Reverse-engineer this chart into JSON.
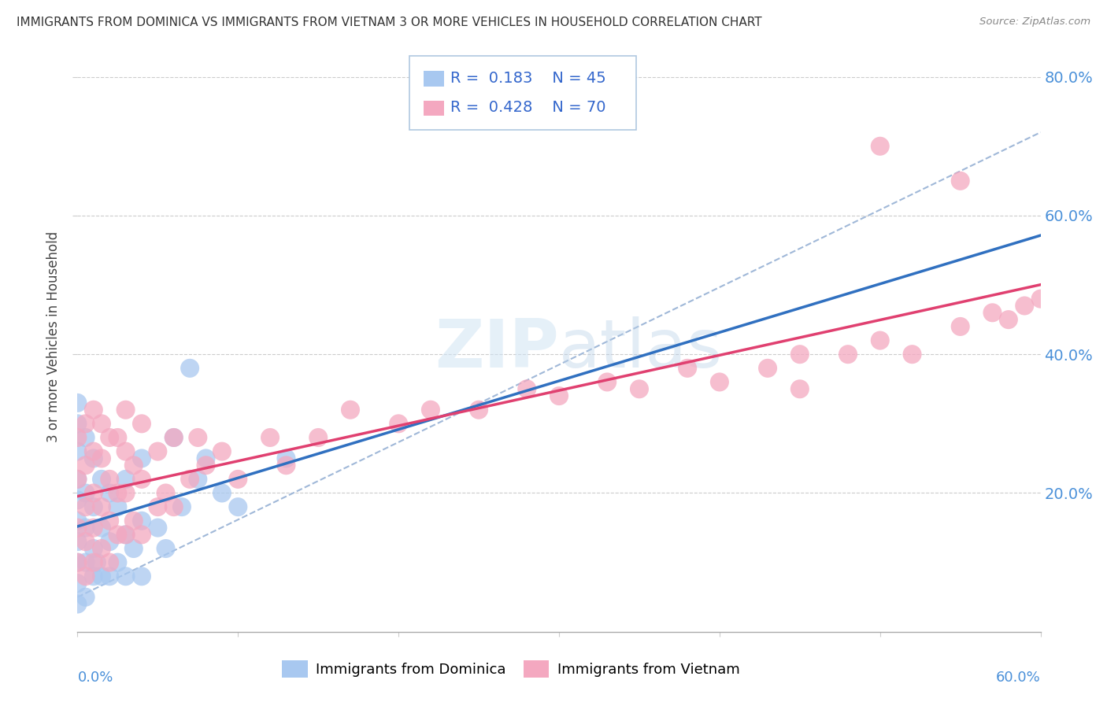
{
  "title": "IMMIGRANTS FROM DOMINICA VS IMMIGRANTS FROM VIETNAM 3 OR MORE VEHICLES IN HOUSEHOLD CORRELATION CHART",
  "source": "Source: ZipAtlas.com",
  "ylabel": "3 or more Vehicles in Household",
  "xlim": [
    0.0,
    0.6
  ],
  "ylim": [
    0.0,
    0.85
  ],
  "dominica_R": 0.183,
  "dominica_N": 45,
  "vietnam_R": 0.428,
  "vietnam_N": 70,
  "dominica_color": "#a8c8f0",
  "vietnam_color": "#f4a8c0",
  "dominica_line_color": "#3070c0",
  "vietnam_line_color": "#e04070",
  "dash_line_color": "#a0b8d8",
  "legend_border_color": "#b0c8e0",
  "ytick_vals": [
    0.2,
    0.4,
    0.6,
    0.8
  ],
  "ytick_labels": [
    "20.0%",
    "40.0%",
    "60.0%",
    "80.0%"
  ],
  "dominica_x": [
    0.0,
    0.0,
    0.0,
    0.0,
    0.0,
    0.0,
    0.0,
    0.0,
    0.0,
    0.0,
    0.005,
    0.005,
    0.005,
    0.005,
    0.005,
    0.01,
    0.01,
    0.01,
    0.01,
    0.012,
    0.015,
    0.015,
    0.015,
    0.02,
    0.02,
    0.02,
    0.025,
    0.025,
    0.03,
    0.03,
    0.03,
    0.035,
    0.04,
    0.04,
    0.04,
    0.05,
    0.055,
    0.06,
    0.065,
    0.07,
    0.075,
    0.08,
    0.09,
    0.1,
    0.13
  ],
  "dominica_y": [
    0.04,
    0.07,
    0.1,
    0.13,
    0.16,
    0.19,
    0.22,
    0.26,
    0.3,
    0.33,
    0.05,
    0.1,
    0.15,
    0.2,
    0.28,
    0.08,
    0.12,
    0.18,
    0.25,
    0.1,
    0.08,
    0.15,
    0.22,
    0.08,
    0.13,
    0.2,
    0.1,
    0.18,
    0.08,
    0.14,
    0.22,
    0.12,
    0.08,
    0.16,
    0.25,
    0.15,
    0.12,
    0.28,
    0.18,
    0.38,
    0.22,
    0.25,
    0.2,
    0.18,
    0.25
  ],
  "vietnam_x": [
    0.0,
    0.0,
    0.0,
    0.0,
    0.005,
    0.005,
    0.005,
    0.005,
    0.005,
    0.01,
    0.01,
    0.01,
    0.01,
    0.01,
    0.015,
    0.015,
    0.015,
    0.015,
    0.02,
    0.02,
    0.02,
    0.02,
    0.025,
    0.025,
    0.025,
    0.03,
    0.03,
    0.03,
    0.03,
    0.035,
    0.035,
    0.04,
    0.04,
    0.04,
    0.05,
    0.05,
    0.055,
    0.06,
    0.06,
    0.07,
    0.075,
    0.08,
    0.09,
    0.1,
    0.12,
    0.13,
    0.15,
    0.17,
    0.2,
    0.22,
    0.25,
    0.28,
    0.3,
    0.33,
    0.35,
    0.38,
    0.4,
    0.43,
    0.45,
    0.48,
    0.5,
    0.52,
    0.55,
    0.57,
    0.58,
    0.59,
    0.6,
    0.55,
    0.5,
    0.45
  ],
  "vietnam_y": [
    0.1,
    0.15,
    0.22,
    0.28,
    0.08,
    0.13,
    0.18,
    0.24,
    0.3,
    0.1,
    0.15,
    0.2,
    0.26,
    0.32,
    0.12,
    0.18,
    0.25,
    0.3,
    0.1,
    0.16,
    0.22,
    0.28,
    0.14,
    0.2,
    0.28,
    0.14,
    0.2,
    0.26,
    0.32,
    0.16,
    0.24,
    0.14,
    0.22,
    0.3,
    0.18,
    0.26,
    0.2,
    0.18,
    0.28,
    0.22,
    0.28,
    0.24,
    0.26,
    0.22,
    0.28,
    0.24,
    0.28,
    0.32,
    0.3,
    0.32,
    0.32,
    0.35,
    0.34,
    0.36,
    0.35,
    0.38,
    0.36,
    0.38,
    0.4,
    0.4,
    0.42,
    0.4,
    0.44,
    0.46,
    0.45,
    0.47,
    0.48,
    0.65,
    0.7,
    0.35
  ]
}
